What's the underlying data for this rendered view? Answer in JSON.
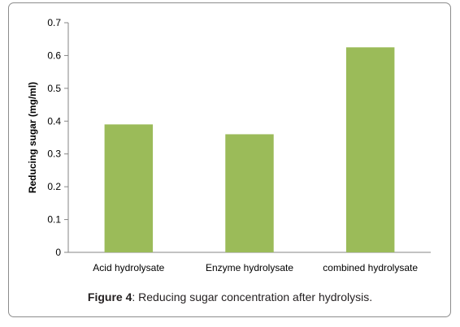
{
  "chart_data": {
    "type": "bar",
    "categories": [
      "Acid hydrolysate",
      "Enzyme hydrolysate",
      "combined hydrolysate"
    ],
    "values": [
      0.39,
      0.36,
      0.625
    ],
    "title": "",
    "xlabel": "",
    "ylabel": "Reducing sugar (mg/ml)",
    "ylim": [
      0,
      0.7
    ],
    "yticks": [
      "0",
      "0.1",
      "0.2",
      "0.3",
      "0.4",
      "0.5",
      "0.6",
      "0.7"
    ],
    "grid": false,
    "legend": "none",
    "bar_color": "#9bbb59"
  },
  "caption": {
    "label": "Figure 4",
    "text": ": Reducing sugar concentration after hydrolysis."
  }
}
